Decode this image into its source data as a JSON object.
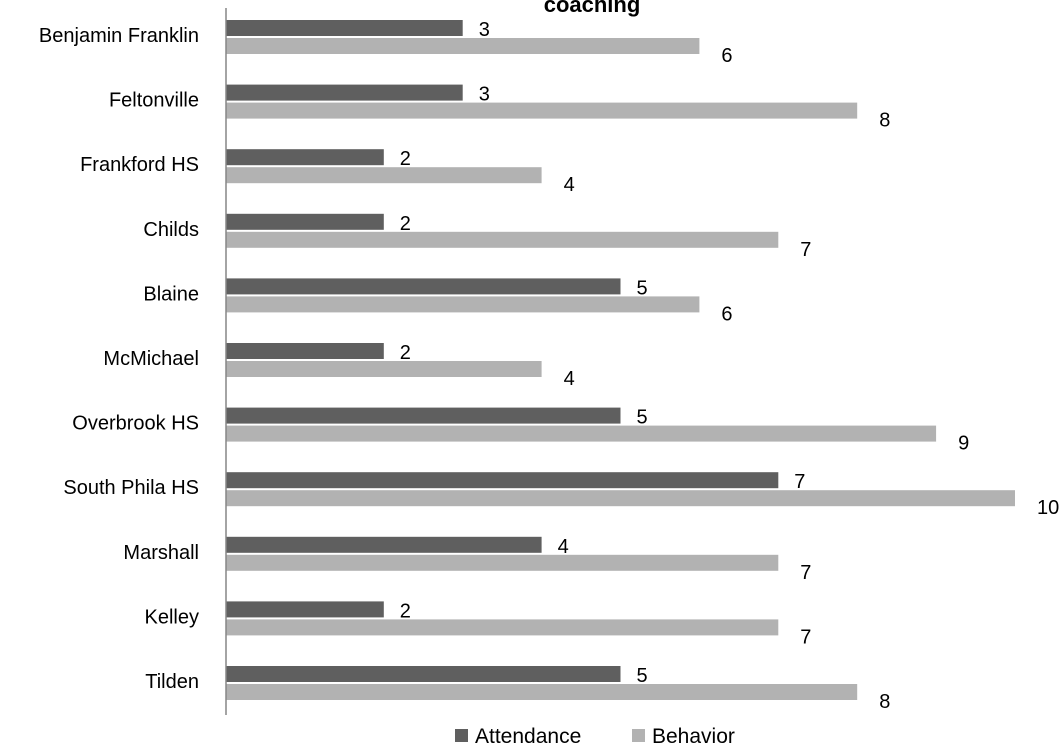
{
  "chart_data": {
    "type": "bar",
    "orientation": "horizontal",
    "title": "coaching",
    "categories": [
      "Benjamin Franklin",
      "Feltonville",
      "Frankford HS",
      "Childs",
      "Blaine",
      "McMichael",
      "Overbrook HS",
      "South Phila HS",
      "Marshall",
      "Kelley",
      "Tilden"
    ],
    "series": [
      {
        "name": "Attendance",
        "color": "#5f5f5f",
        "values": [
          3,
          3,
          2,
          2,
          5,
          2,
          5,
          7,
          4,
          2,
          5
        ]
      },
      {
        "name": "Behavior",
        "color": "#b2b2b2",
        "values": [
          6,
          8,
          4,
          7,
          6,
          4,
          9,
          10,
          7,
          7,
          8
        ]
      }
    ],
    "xlim": [
      0,
      10
    ],
    "grid": false,
    "legend": "bottom",
    "data_labels": true
  }
}
